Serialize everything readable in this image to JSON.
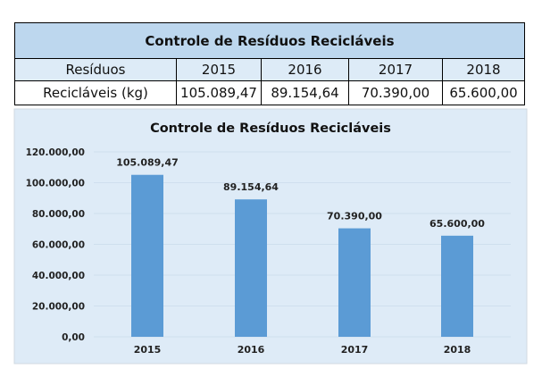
{
  "table": {
    "title": "Controle de Resíduos  Recicláveis",
    "header": [
      "Resíduos",
      "2015",
      "2016",
      "2017",
      "2018"
    ],
    "row": [
      "Recicláveis (kg)",
      "105.089,47",
      "89.154,64",
      "70.390,00",
      "65.600,00"
    ]
  },
  "chart_data": {
    "type": "bar",
    "title": "Controle de Resíduos  Recicláveis",
    "categories": [
      "2015",
      "2016",
      "2017",
      "2018"
    ],
    "values": [
      105089.47,
      89154.64,
      70390.0,
      65600.0
    ],
    "data_labels": [
      "105.089,47",
      "89.154,64",
      "70.390,00",
      "65.600,00"
    ],
    "yticks": [
      0,
      20000,
      40000,
      60000,
      80000,
      100000,
      120000
    ],
    "ytick_labels": [
      "0,00",
      "20.000,00",
      "40.000,00",
      "60.000,00",
      "80.000,00",
      "100.000,00",
      "120.000,00"
    ],
    "ylim": [
      0,
      120000
    ],
    "xlabel": "",
    "ylabel": "",
    "grid": true,
    "bar_color": "#5b9bd5",
    "background": "#deebf7"
  }
}
